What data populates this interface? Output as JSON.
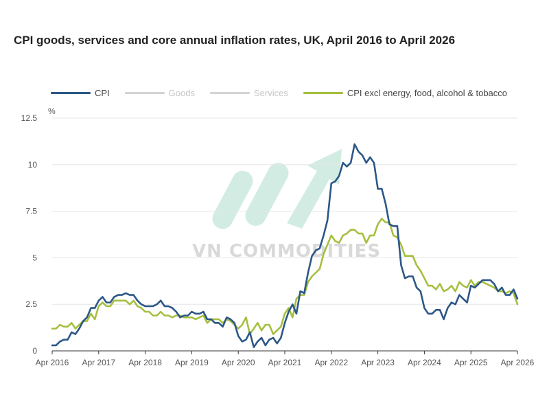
{
  "title": "CPI goods, services and core annual inflation rates, UK, April 2016 to April 2026",
  "watermark": {
    "text": "VN COMMODITIES"
  },
  "colors": {
    "cpi": "#2c5787",
    "goods": "#cfcfcf",
    "services": "#cfcfcf",
    "core": "#a5bf3f",
    "grid": "#e6e6e6",
    "axis": "#333333"
  },
  "chart_data": {
    "type": "line",
    "title": "CPI goods, services and core annual inflation rates, UK, April 2016 to April 2026",
    "ylabel": "%",
    "ylim": [
      0,
      12.5
    ],
    "yticks": [
      "0",
      "2.5",
      "5",
      "7.5",
      "10",
      "12.5"
    ],
    "xlim": [
      "2016-04",
      "2026-04"
    ],
    "xticks": [
      "Apr 2016",
      "Apr 2017",
      "Apr 2018",
      "Apr 2019",
      "Apr 2020",
      "Apr 2021",
      "Apr 2022",
      "Apr 2023",
      "Apr 2024",
      "Apr 2025",
      "Apr 2026"
    ],
    "grid": "horizontal",
    "legend": "top",
    "series": [
      {
        "name": "CPI",
        "color": "#2c5787",
        "start": "2016-04",
        "values": [
          0.3,
          0.3,
          0.5,
          0.6,
          0.6,
          1.0,
          0.9,
          1.2,
          1.6,
          1.8,
          2.3,
          2.3,
          2.7,
          2.9,
          2.6,
          2.6,
          2.9,
          3.0,
          3.0,
          3.1,
          3.0,
          3.0,
          2.7,
          2.5,
          2.4,
          2.4,
          2.4,
          2.5,
          2.7,
          2.4,
          2.4,
          2.3,
          2.1,
          1.8,
          1.9,
          1.9,
          2.1,
          2.0,
          2.0,
          2.1,
          1.7,
          1.7,
          1.5,
          1.5,
          1.3,
          1.8,
          1.7,
          1.5,
          0.8,
          0.5,
          0.6,
          1.0,
          0.2,
          0.5,
          0.7,
          0.3,
          0.6,
          0.7,
          0.4,
          0.7,
          1.5,
          2.1,
          2.5,
          2.0,
          3.2,
          3.1,
          4.2,
          5.1,
          5.4,
          5.5,
          6.2,
          7.0,
          9.0,
          9.1,
          9.4,
          10.1,
          9.9,
          10.1,
          11.1,
          10.7,
          10.5,
          10.1,
          10.4,
          10.1,
          8.7,
          8.7,
          7.9,
          6.8,
          6.7,
          6.7,
          4.6,
          3.9,
          4.0,
          4.0,
          3.4,
          3.2,
          2.3,
          2.0,
          2.0,
          2.2,
          2.2,
          1.7,
          2.3,
          2.6,
          2.5,
          3.0,
          2.8,
          2.6,
          3.5,
          3.4,
          3.6,
          3.8,
          3.8,
          3.8,
          3.6,
          3.2,
          3.4,
          3.0,
          3.0,
          3.3,
          2.8
        ]
      },
      {
        "name": "Goods",
        "color": "#cfcfcf",
        "values": []
      },
      {
        "name": "Services",
        "color": "#cfcfcf",
        "values": []
      },
      {
        "name": "CPI excl energy, food, alcohol & tobacco",
        "color": "#a5bf3f",
        "start": "2016-04",
        "values": [
          1.2,
          1.2,
          1.4,
          1.3,
          1.3,
          1.5,
          1.2,
          1.4,
          1.6,
          1.6,
          2.0,
          1.7,
          2.4,
          2.6,
          2.4,
          2.4,
          2.7,
          2.7,
          2.7,
          2.7,
          2.5,
          2.7,
          2.4,
          2.3,
          2.1,
          2.1,
          1.9,
          1.9,
          2.1,
          1.9,
          1.9,
          1.8,
          1.9,
          1.9,
          1.8,
          1.8,
          1.8,
          1.7,
          1.8,
          1.9,
          1.5,
          1.7,
          1.7,
          1.7,
          1.5,
          1.7,
          1.6,
          1.4,
          1.2,
          1.4,
          1.8,
          0.9,
          1.2,
          1.5,
          1.1,
          1.4,
          1.4,
          0.9,
          1.1,
          1.3,
          2.0,
          2.3,
          1.8,
          2.8,
          3.0,
          3.0,
          3.7,
          4.0,
          4.2,
          4.4,
          5.2,
          5.7,
          6.2,
          5.9,
          5.8,
          6.2,
          6.3,
          6.5,
          6.5,
          6.3,
          6.3,
          5.8,
          6.2,
          6.2,
          6.8,
          7.1,
          6.9,
          6.9,
          6.2,
          6.1,
          5.7,
          5.1,
          5.1,
          5.1,
          4.6,
          4.3,
          3.9,
          3.5,
          3.5,
          3.3,
          3.6,
          3.2,
          3.3,
          3.5,
          3.2,
          3.7,
          3.5,
          3.4,
          3.8,
          3.5,
          3.7,
          3.7,
          3.6,
          3.5,
          3.4,
          3.2,
          3.2,
          3.1,
          3.2,
          3.1,
          2.5
        ]
      }
    ]
  }
}
